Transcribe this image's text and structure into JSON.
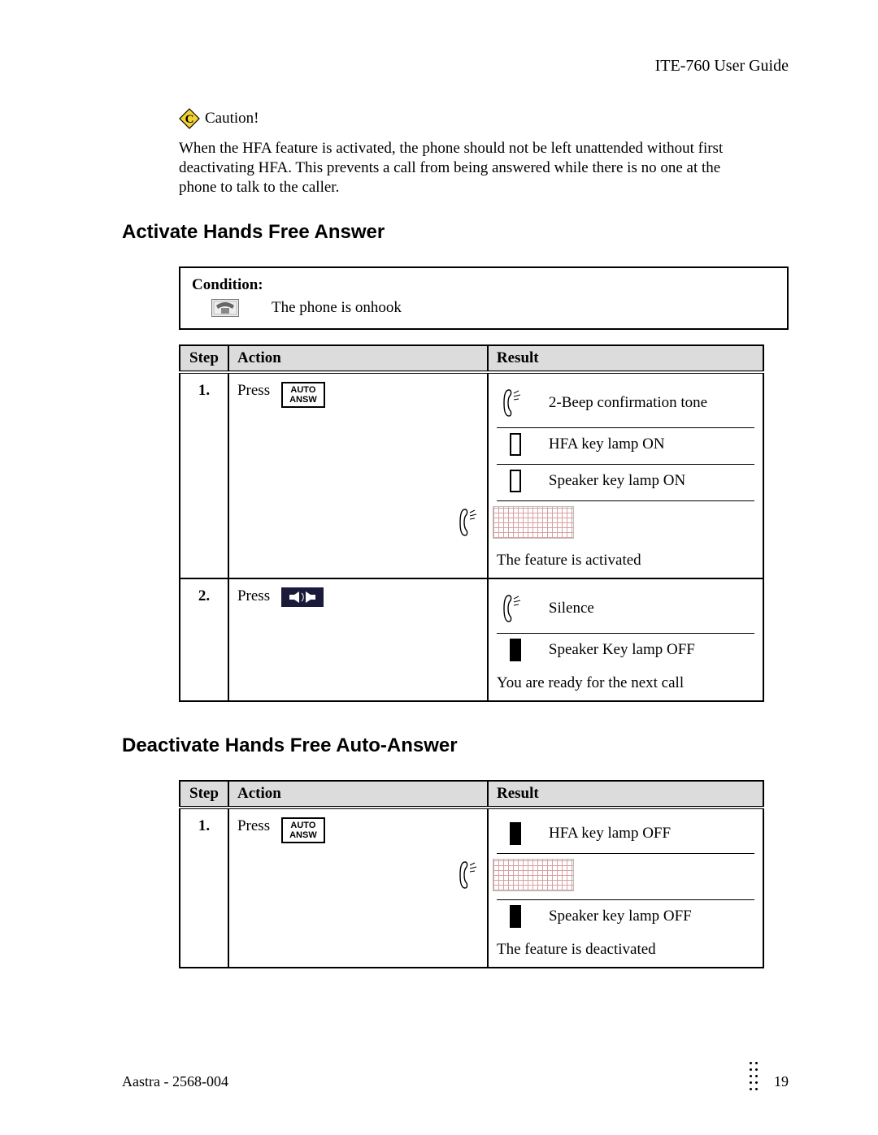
{
  "header": {
    "doc_title": "ITE-760 User Guide"
  },
  "caution": {
    "label": "Caution!",
    "text": "When the HFA feature is activated, the phone should not be left unattended without first deactivating HFA. This prevents a call from being answered while there is no one at the phone to talk to the caller."
  },
  "section_activate": {
    "heading": "Activate Hands Free Answer",
    "condition_label": "Condition:",
    "condition_text": "The phone is onhook",
    "table": {
      "columns": {
        "step": "Step",
        "action": "Action",
        "result": "Result"
      },
      "rows": [
        {
          "step": "1.",
          "action_word": "Press",
          "key_label_line1": "AUTO",
          "key_label_line2": "ANSW",
          "key_style": "light",
          "results": [
            {
              "icon": "handset",
              "text": "2-Beep confirmation tone"
            },
            {
              "icon": "lamp-on",
              "text": "HFA key lamp ON"
            },
            {
              "icon": "lamp-on",
              "text": "Speaker key lamp ON"
            },
            {
              "icon": "activated",
              "text": ""
            }
          ],
          "summary": "The feature is activated"
        },
        {
          "step": "2.",
          "action_word": "Press",
          "key_label_line1": "",
          "key_label_line2": "",
          "key_style": "dark",
          "results": [
            {
              "icon": "handset",
              "text": "Silence"
            },
            {
              "icon": "lamp-off",
              "text": "Speaker Key lamp OFF"
            }
          ],
          "summary": "You are ready for the next call"
        }
      ]
    }
  },
  "section_deactivate": {
    "heading": "Deactivate Hands Free Auto-Answer",
    "table": {
      "columns": {
        "step": "Step",
        "action": "Action",
        "result": "Result"
      },
      "rows": [
        {
          "step": "1.",
          "action_word": "Press",
          "key_label_line1": "AUTO",
          "key_label_line2": "ANSW",
          "key_style": "light",
          "results": [
            {
              "icon": "lamp-off",
              "text": "HFA key lamp OFF"
            },
            {
              "icon": "activated",
              "text": ""
            },
            {
              "icon": "lamp-off",
              "text": "Speaker key lamp OFF"
            }
          ],
          "summary": "The feature is deactivated"
        }
      ]
    }
  },
  "footer": {
    "left": "Aastra - 2568-004",
    "page": "19"
  },
  "colors": {
    "header_bg": "#dcdcdc",
    "border": "#000000",
    "scribble": "#d9a0a0",
    "key_dark_bg": "#1a1a3a",
    "caution_yellow": "#f4d234"
  }
}
